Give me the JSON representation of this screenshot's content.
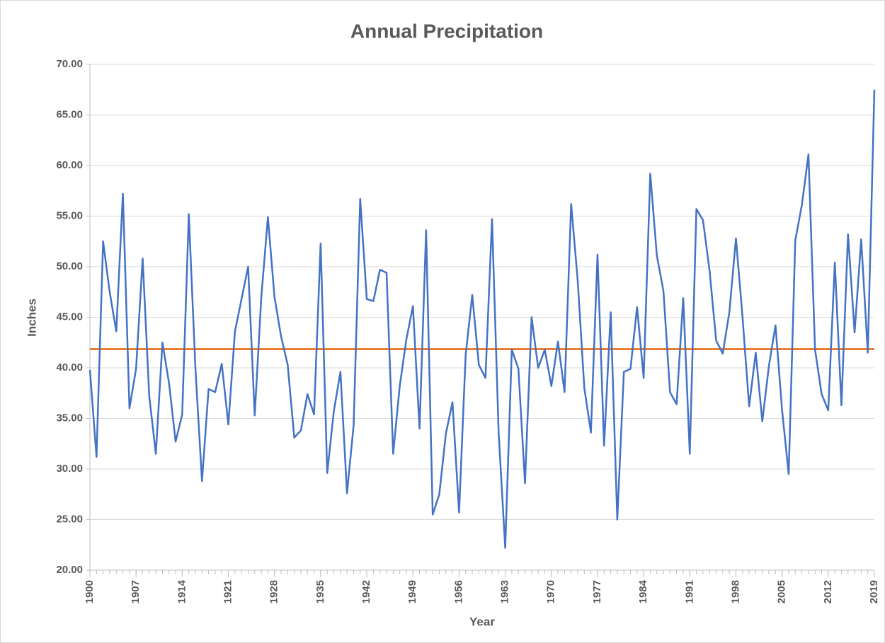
{
  "chart_data": {
    "type": "line",
    "title": "Annual Precipitation",
    "x_label": "Year",
    "y_label": "Inches",
    "x": [
      1900,
      1901,
      1902,
      1903,
      1904,
      1905,
      1906,
      1907,
      1908,
      1909,
      1910,
      1911,
      1912,
      1913,
      1914,
      1915,
      1916,
      1917,
      1918,
      1919,
      1920,
      1921,
      1922,
      1923,
      1924,
      1925,
      1926,
      1927,
      1928,
      1929,
      1930,
      1931,
      1932,
      1933,
      1934,
      1935,
      1936,
      1937,
      1938,
      1939,
      1940,
      1941,
      1942,
      1943,
      1944,
      1945,
      1946,
      1947,
      1948,
      1949,
      1950,
      1951,
      1952,
      1953,
      1954,
      1955,
      1956,
      1957,
      1958,
      1959,
      1960,
      1961,
      1962,
      1963,
      1964,
      1965,
      1966,
      1967,
      1968,
      1969,
      1970,
      1971,
      1972,
      1973,
      1974,
      1975,
      1976,
      1977,
      1978,
      1979,
      1980,
      1981,
      1982,
      1983,
      1984,
      1985,
      1986,
      1987,
      1988,
      1989,
      1990,
      1991,
      1992,
      1993,
      1994,
      1995,
      1996,
      1997,
      1998,
      1999,
      2000,
      2001,
      2002,
      2003,
      2004,
      2005,
      2006,
      2007,
      2008,
      2009,
      2010,
      2011,
      2012,
      2013,
      2014,
      2015,
      2016,
      2017,
      2018,
      2019
    ],
    "series": [
      {
        "color": "#4472c4",
        "values": [
          39.8,
          31.2,
          52.5,
          47.5,
          43.6,
          57.2,
          36.0,
          39.9,
          50.8,
          37.2,
          31.5,
          42.5,
          38.5,
          32.7,
          35.4,
          55.2,
          40.0,
          28.8,
          37.9,
          37.6,
          40.4,
          34.4,
          43.6,
          46.8,
          50.0,
          35.3,
          47.0,
          54.9,
          47.0,
          43.1,
          40.3,
          33.1,
          33.8,
          37.4,
          35.4,
          52.3,
          29.6,
          35.7,
          39.6,
          27.6,
          34.3,
          56.7,
          46.8,
          46.6,
          49.7,
          49.4,
          31.5,
          38.2,
          42.8,
          46.1,
          34.0,
          53.6,
          25.5,
          27.5,
          33.5,
          36.6,
          25.7,
          41.3,
          47.2,
          40.3,
          39.0,
          54.7,
          33.6,
          22.2,
          41.8,
          39.9,
          28.6,
          45.0,
          40.0,
          41.8,
          38.2,
          42.6,
          37.6,
          56.2,
          48.6,
          38.0,
          33.6,
          51.2,
          32.3,
          45.5,
          25.0,
          39.6,
          39.9,
          46.0,
          39.0,
          59.2,
          51.1,
          47.6,
          37.6,
          36.4,
          46.9,
          31.5,
          55.7,
          54.6,
          49.6,
          42.7,
          41.4,
          45.5,
          52.8,
          45.0,
          36.2,
          41.5,
          34.7,
          40.2,
          44.2,
          35.8,
          29.5,
          52.6,
          56.1,
          61.1,
          41.8,
          37.4,
          35.8,
          50.4,
          36.3,
          53.2,
          43.5,
          52.7,
          41.5,
          67.5
        ]
      }
    ],
    "reference_line": {
      "value": 41.85,
      "color": "#ed7d31"
    },
    "xlim": [
      1900,
      2019
    ],
    "xticks": [
      1900,
      1907,
      1914,
      1921,
      1928,
      1935,
      1942,
      1949,
      1956,
      1963,
      1970,
      1977,
      1984,
      1991,
      1998,
      2005,
      2012,
      2019
    ],
    "ylim": [
      20,
      70
    ],
    "yticks": [
      {
        "value": 20,
        "label": "20.00"
      },
      {
        "value": 25,
        "label": "25.00"
      },
      {
        "value": 30,
        "label": "30.00"
      },
      {
        "value": 35,
        "label": "35.00"
      },
      {
        "value": 40,
        "label": "40.00"
      },
      {
        "value": 45,
        "label": "45.00"
      },
      {
        "value": 50,
        "label": "50.00"
      },
      {
        "value": 55,
        "label": "55.00"
      },
      {
        "value": 60,
        "label": "60.00"
      },
      {
        "value": 65,
        "label": "65.00"
      },
      {
        "value": 70,
        "label": "70.00"
      }
    ],
    "grid": true
  }
}
